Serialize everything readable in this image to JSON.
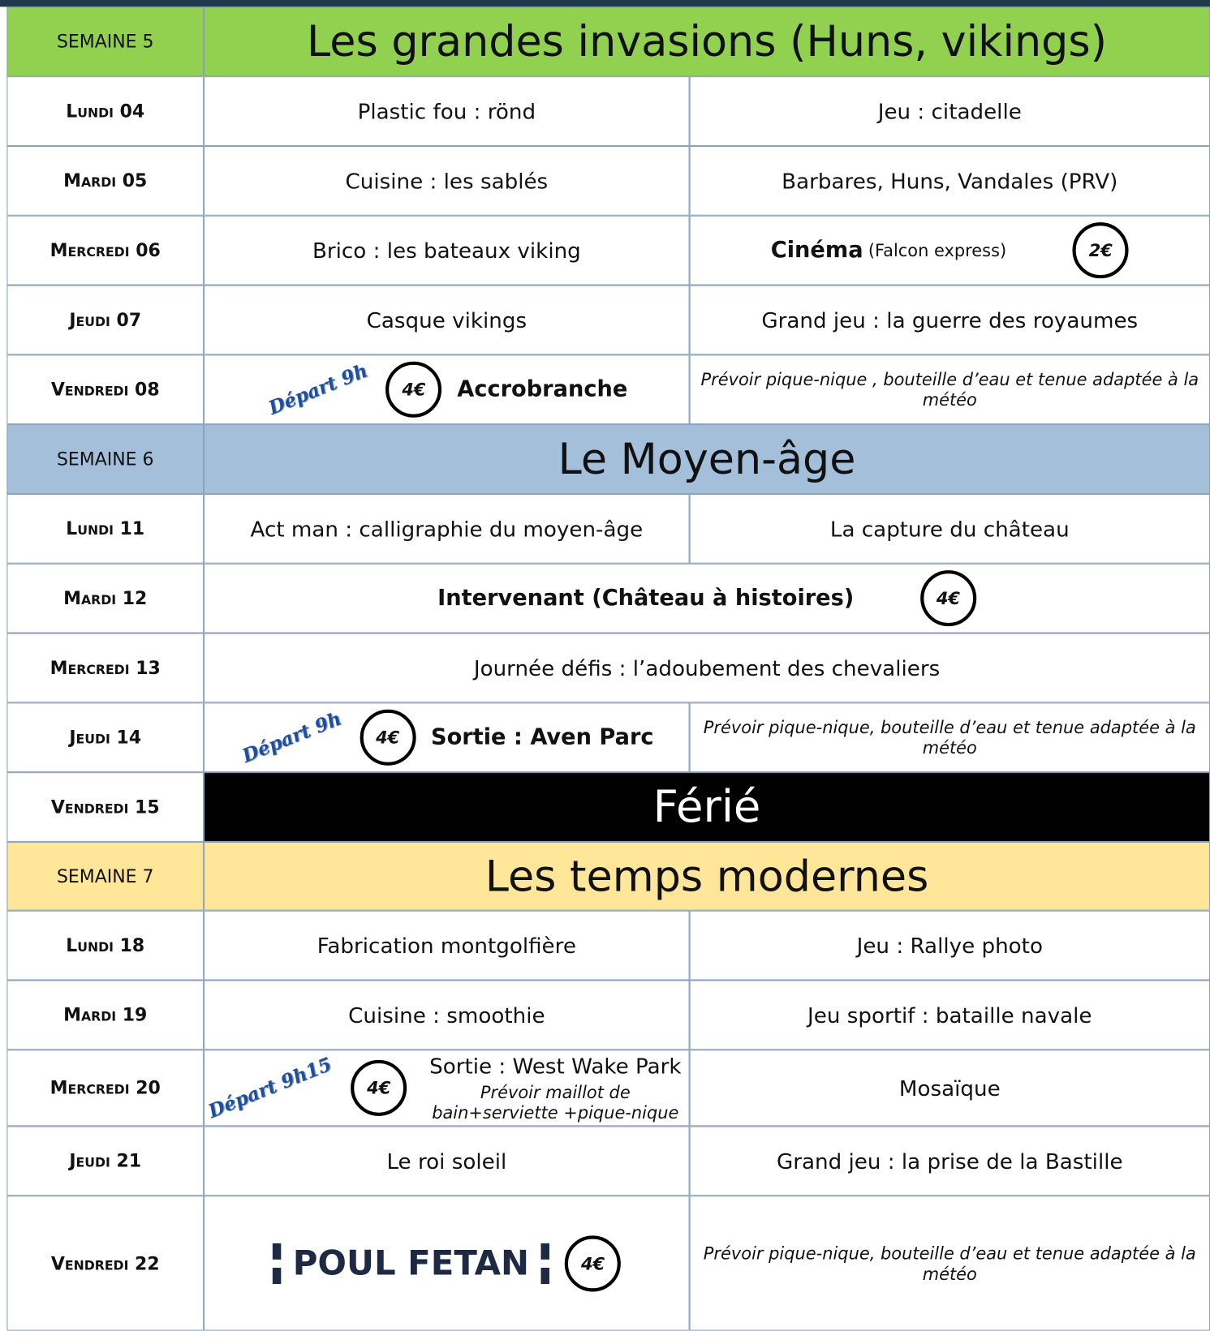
{
  "weeks": [
    {
      "label": "SEMAINE 5",
      "title": "Les grandes invasions (Huns, vikings)",
      "color": "#92d050",
      "days": [
        {
          "day": "Lundi 04",
          "left": {
            "text": "Plastic fou :  rönd"
          },
          "right": {
            "text": "Jeu : citadelle"
          }
        },
        {
          "day": "Mardi 05",
          "left": {
            "text": "Cuisine : les sablés"
          },
          "right": {
            "text": "Barbares, Huns, Vandales (PRV)"
          }
        },
        {
          "day": "Mercredi 06",
          "left": {
            "text": "Brico : les bateaux viking"
          },
          "right": {
            "bold": "Cinéma",
            "text": "(Falcon express)",
            "price": "2€"
          }
        },
        {
          "day": "Jeudi 07",
          "left": {
            "text": "Casque vikings"
          },
          "right": {
            "text": "Grand jeu : la guerre des royaumes"
          }
        },
        {
          "day": "Vendredi 08",
          "left": {
            "departure": "Départ 9h",
            "price": "4€",
            "bold": "Accrobranche"
          },
          "right": {
            "note": "Prévoir pique-nique , bouteille d’eau et tenue adaptée à la météo"
          }
        }
      ]
    },
    {
      "label": "SEMAINE 6",
      "title": "Le Moyen-âge",
      "color": "#a4bfd9",
      "days": [
        {
          "day": "Lundi 11",
          "left": {
            "text": "Act man : calligraphie du moyen-âge"
          },
          "right": {
            "text": "La capture du château"
          }
        },
        {
          "day": "Mardi 12",
          "full": {
            "bold": "Intervenant (Château à histoires)",
            "price": "4€"
          }
        },
        {
          "day": "Mercredi 13",
          "full": {
            "text": "Journée défis : l’adoubement des chevaliers"
          }
        },
        {
          "day": "Jeudi 14",
          "left": {
            "departure": "Départ 9h",
            "price": "4€",
            "bold": "Sortie : Aven Parc"
          },
          "right": {
            "note": "Prévoir pique-nique, bouteille d’eau et tenue adaptée à la météo"
          }
        },
        {
          "day": "Vendredi 15",
          "full": {
            "holiday": "Férié",
            "color": "#000000"
          }
        }
      ]
    },
    {
      "label": "SEMAINE 7",
      "title": "Les temps modernes",
      "color": "#ffe699",
      "days": [
        {
          "day": "Lundi 18",
          "left": {
            "text": "Fabrication montgolfière"
          },
          "right": {
            "text": "Jeu : Rallye photo"
          }
        },
        {
          "day": "Mardi 19",
          "left": {
            "text": "Cuisine : smoothie"
          },
          "right": {
            "text": "Jeu sportif : bataille navale"
          }
        },
        {
          "day": "Mercredi 20",
          "left": {
            "departure": "Départ 9h15",
            "text": "Sortie : West Wake Park",
            "note": "Prévoir maillot de bain+serviette +pique-nique",
            "price": "4€"
          },
          "right": {
            "text": "Mosaïque"
          }
        },
        {
          "day": "Jeudi 21",
          "left": {
            "text": "Le roi soleil"
          },
          "right": {
            "text": "Grand jeu :  la prise de la Bastille"
          }
        },
        {
          "day": "Vendredi 22",
          "left": {
            "logo": "POUL FETAN",
            "price": "4€"
          },
          "right": {
            "note": "Prévoir pique-nique, bouteille d’eau et tenue adaptée à la météo"
          }
        }
      ]
    }
  ]
}
